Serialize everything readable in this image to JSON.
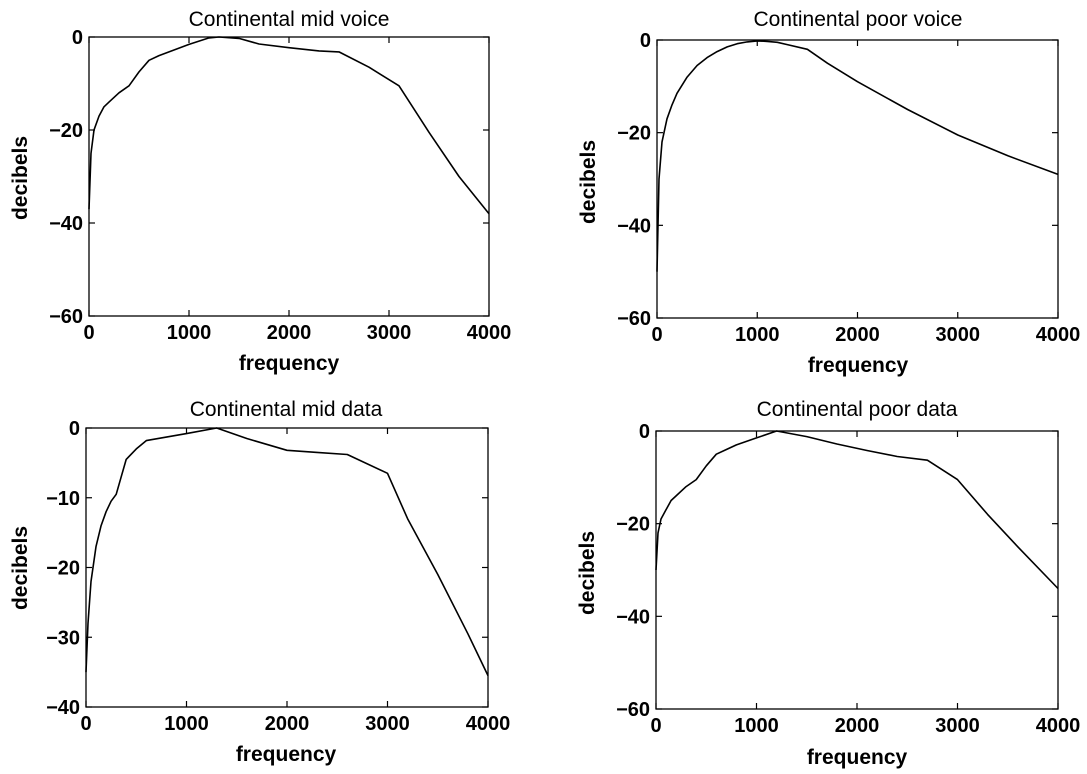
{
  "colors": {
    "background": "#ffffff",
    "line": "#000000"
  },
  "chart_data": [
    {
      "type": "line",
      "title": "Continental mid voice",
      "xlabel": "frequency",
      "ylabel": "decibels",
      "xlim": [
        0,
        4000
      ],
      "ylim": [
        -60,
        0
      ],
      "xticks": [
        0,
        1000,
        2000,
        3000,
        4000
      ],
      "yticks": [
        0,
        -20,
        -40,
        -60
      ],
      "xtick_labels": [
        "0",
        "1000",
        "2000",
        "3000",
        "4000"
      ],
      "ytick_labels": [
        "0",
        "−20",
        "−40",
        "−60"
      ],
      "grid": false,
      "x": [
        0,
        20,
        50,
        100,
        150,
        200,
        300,
        400,
        500,
        600,
        700,
        800,
        1000,
        1200,
        1300,
        1500,
        1700,
        2000,
        2300,
        2500,
        2800,
        3100,
        3400,
        3700,
        4000
      ],
      "y": [
        -37,
        -25,
        -20,
        -17,
        -15,
        -14,
        -12,
        -10.5,
        -7.5,
        -5,
        -4,
        -3.2,
        -1.6,
        -0.2,
        0,
        -0.3,
        -1.5,
        -2.3,
        -3,
        -3.2,
        -6.5,
        -10.5,
        -20.5,
        -30,
        -38
      ]
    },
    {
      "type": "line",
      "title": "Continental poor voice",
      "xlabel": "frequency",
      "ylabel": "decibels",
      "xlim": [
        0,
        4000
      ],
      "ylim": [
        -60,
        0
      ],
      "xticks": [
        0,
        1000,
        2000,
        3000,
        4000
      ],
      "yticks": [
        0,
        -20,
        -40,
        -60
      ],
      "xtick_labels": [
        "0",
        "1000",
        "2000",
        "3000",
        "4000"
      ],
      "ytick_labels": [
        "0",
        "−20",
        "−40",
        "−60"
      ],
      "grid": false,
      "x": [
        0,
        20,
        50,
        100,
        150,
        200,
        300,
        400,
        500,
        600,
        700,
        800,
        900,
        1000,
        1100,
        1200,
        1300,
        1500,
        1700,
        2000,
        2500,
        3000,
        3500,
        4000
      ],
      "y": [
        -50,
        -30,
        -22,
        -17,
        -14,
        -11.5,
        -8,
        -5.5,
        -3.8,
        -2.5,
        -1.5,
        -0.8,
        -0.4,
        -0.2,
        -0.3,
        -0.5,
        -1,
        -2,
        -5,
        -9,
        -15,
        -20.5,
        -25,
        -29
      ]
    },
    {
      "type": "line",
      "title": "Continental mid data",
      "xlabel": "frequency",
      "ylabel": "decibels",
      "xlim": [
        0,
        4000
      ],
      "ylim": [
        -40,
        0
      ],
      "xticks": [
        0,
        1000,
        2000,
        3000,
        4000
      ],
      "yticks": [
        0,
        -10,
        -20,
        -30,
        -40
      ],
      "xtick_labels": [
        "0",
        "1000",
        "2000",
        "3000",
        "4000"
      ],
      "ytick_labels": [
        "0",
        "−10",
        "−20",
        "−30",
        "−40"
      ],
      "grid": false,
      "x": [
        0,
        20,
        50,
        100,
        150,
        200,
        250,
        300,
        350,
        400,
        500,
        600,
        800,
        1000,
        1300,
        1600,
        2000,
        2300,
        2600,
        3000,
        3200,
        3500,
        3800,
        4000
      ],
      "y": [
        -35,
        -28,
        -22,
        -17,
        -14,
        -12,
        -10.5,
        -9.5,
        -7,
        -4.5,
        -3,
        -1.8,
        -1.3,
        -0.8,
        0,
        -1.5,
        -3.2,
        -3.5,
        -3.8,
        -6.5,
        -13,
        -21,
        -29.5,
        -35.5
      ]
    },
    {
      "type": "line",
      "title": "Continental poor data",
      "xlabel": "frequency",
      "ylabel": "decibels",
      "xlim": [
        0,
        4000
      ],
      "ylim": [
        -60,
        0
      ],
      "xticks": [
        0,
        1000,
        2000,
        3000,
        4000
      ],
      "yticks": [
        0,
        -20,
        -40,
        -60
      ],
      "xtick_labels": [
        "0",
        "1000",
        "2000",
        "3000",
        "4000"
      ],
      "ytick_labels": [
        "0",
        "−20",
        "−40",
        "−60"
      ],
      "grid": false,
      "x": [
        0,
        20,
        50,
        100,
        150,
        200,
        300,
        400,
        500,
        600,
        700,
        800,
        1000,
        1200,
        1500,
        1800,
        2100,
        2400,
        2700,
        3000,
        3300,
        3600,
        4000
      ],
      "y": [
        -30,
        -22,
        -19,
        -17,
        -15,
        -14,
        -12,
        -10.5,
        -7.5,
        -5,
        -4,
        -3,
        -1.5,
        0,
        -1.2,
        -2.8,
        -4.2,
        -5.5,
        -6.3,
        -10.5,
        -18,
        -25,
        -34
      ]
    }
  ]
}
